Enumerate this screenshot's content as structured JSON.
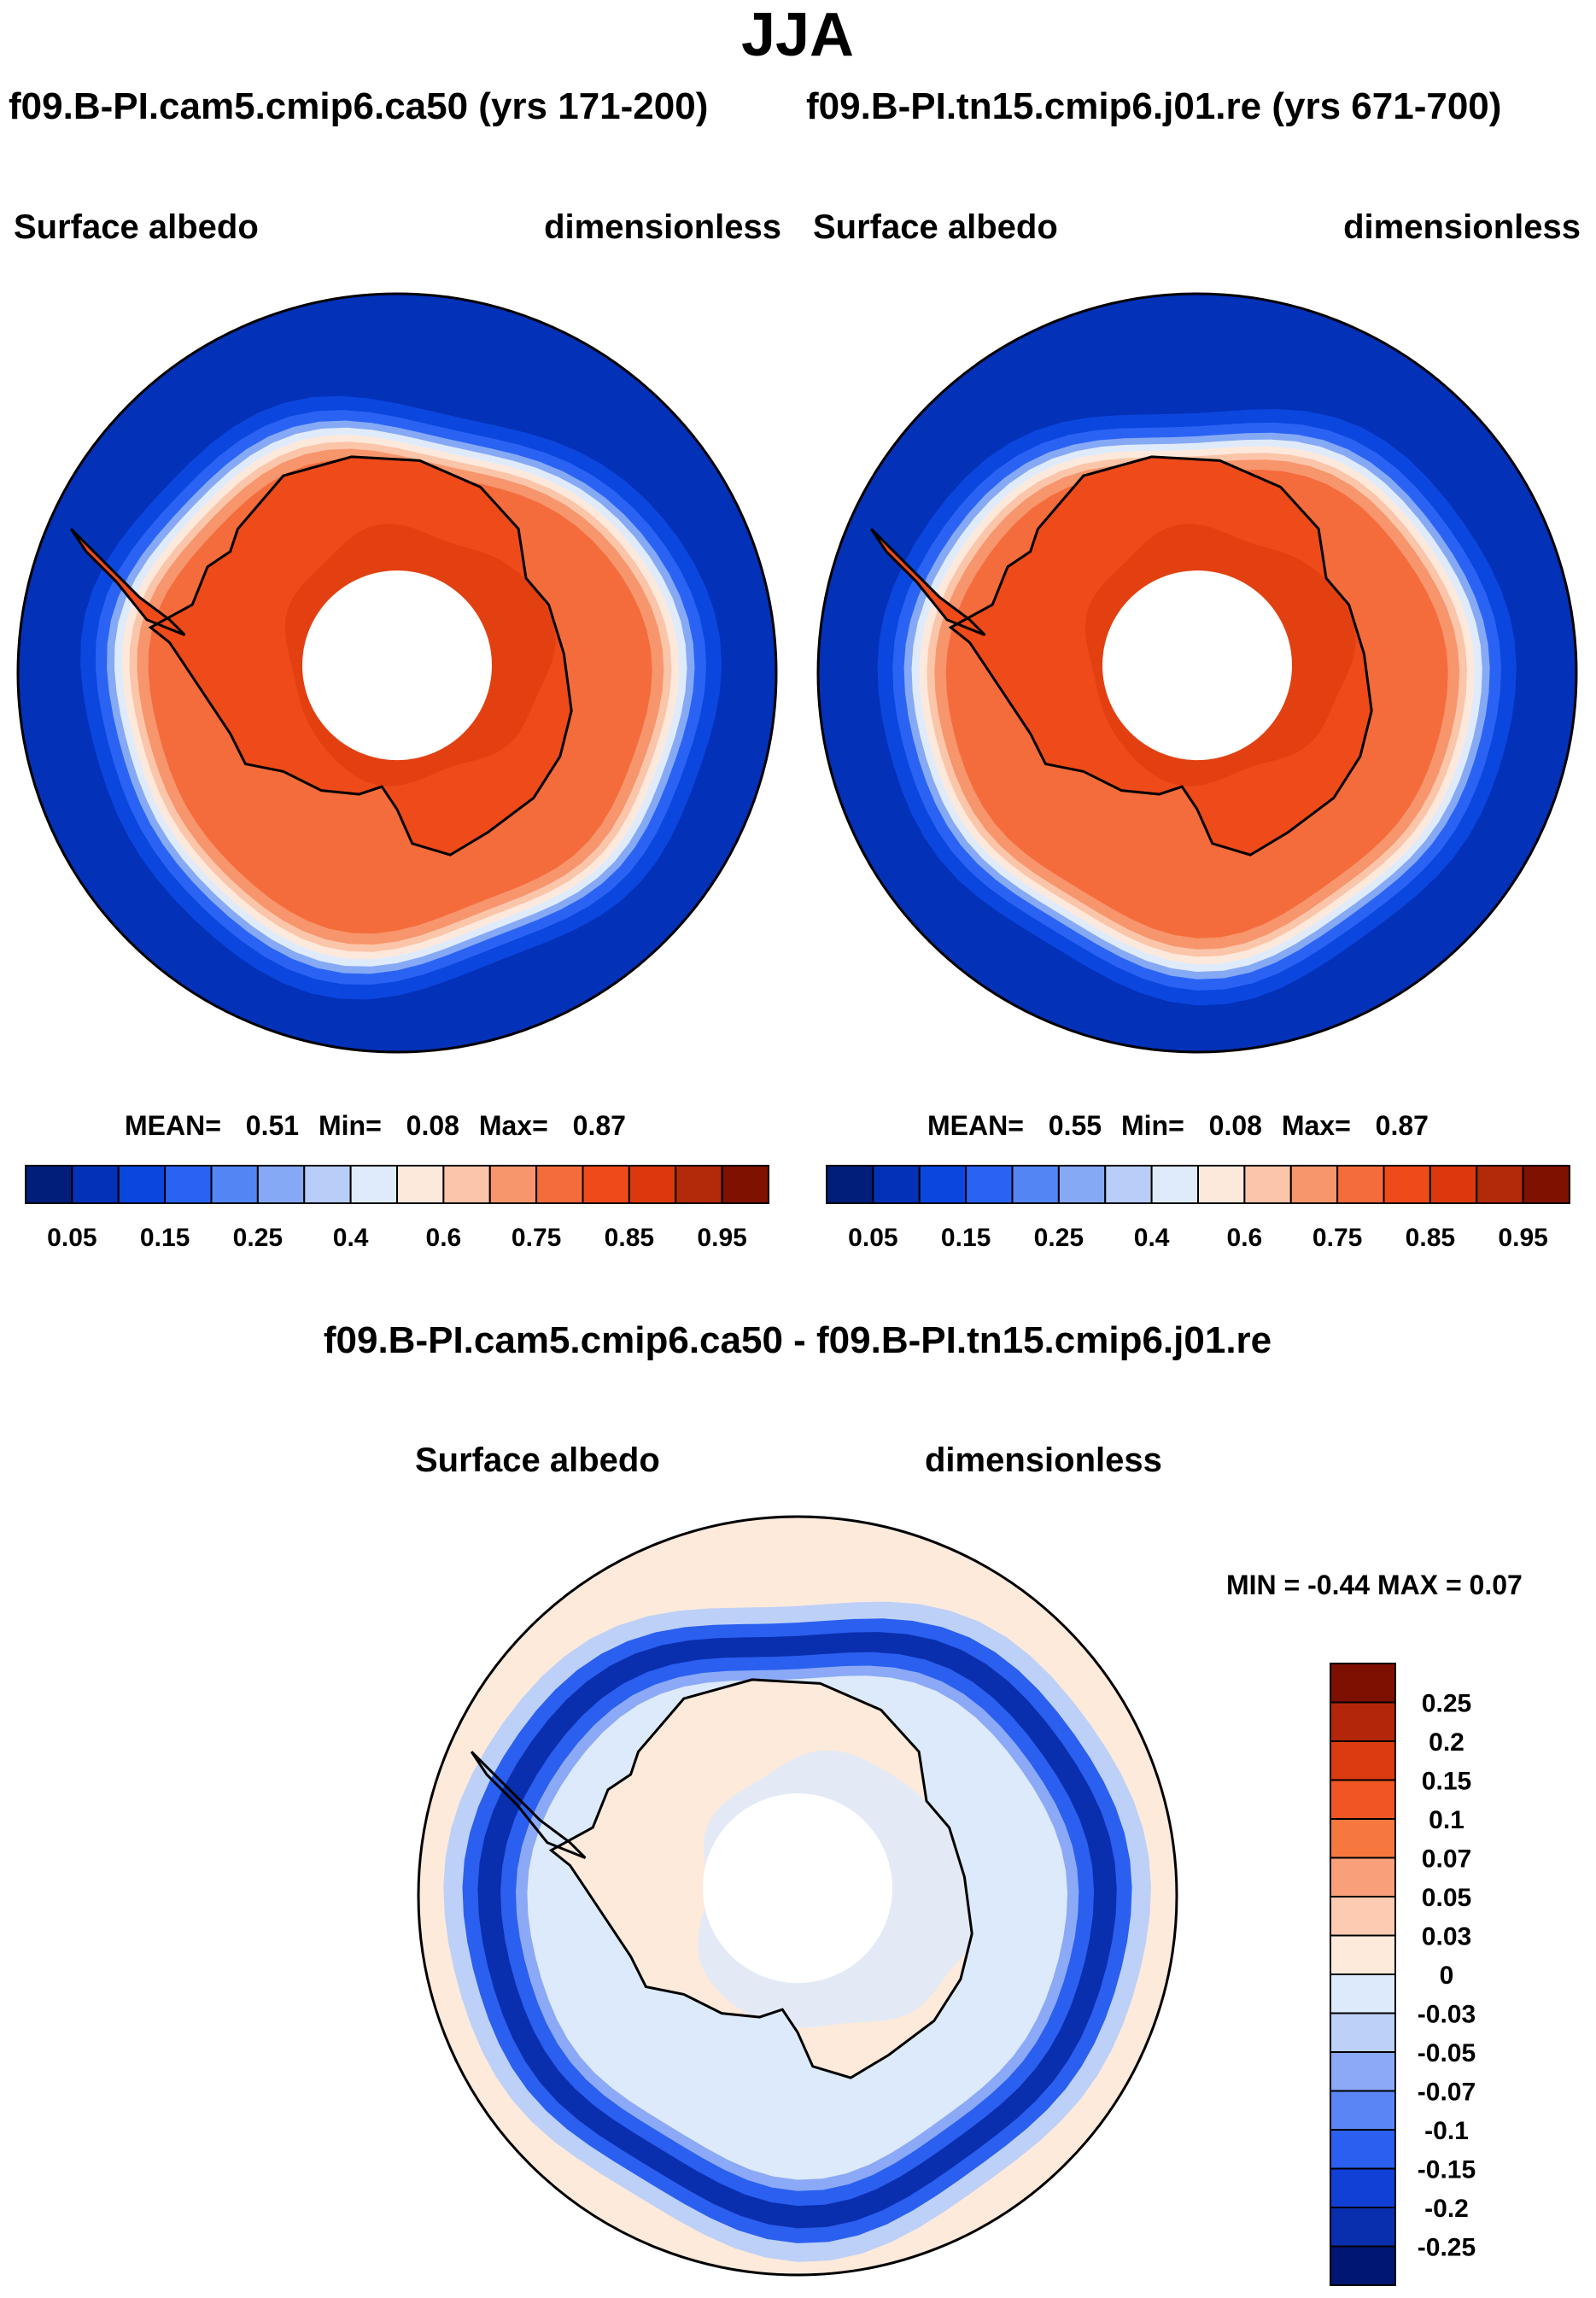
{
  "title": "JJA",
  "panels": [
    {
      "case_title": "f09.B-PI.cam5.cmip6.ca50 (yrs 171-200)",
      "left_label": "Surface albedo",
      "right_label": "dimensionless",
      "stats": {
        "mean_label": "MEAN=",
        "mean": "0.51",
        "min_label": "Min=",
        "min": "0.08",
        "max_label": "Max=",
        "max": "0.87"
      }
    },
    {
      "case_title": "f09.B-PI.tn15.cmip6.j01.re (yrs 671-700)",
      "left_label": "Surface albedo",
      "right_label": "dimensionless",
      "stats": {
        "mean_label": "MEAN=",
        "mean": "0.55",
        "min_label": "Min=",
        "min": "0.08",
        "max_label": "Max=",
        "max": "0.87"
      }
    }
  ],
  "diff": {
    "title": "f09.B-PI.cam5.cmip6.ca50 - f09.B-PI.tn15.cmip6.j01.re",
    "left_label": "Surface albedo",
    "right_label": "dimensionless",
    "minmax": "MIN =  -0.44 MAX =   0.07"
  },
  "colors": {
    "field_palette": [
      "#001e7a",
      "#0331b8",
      "#0b46de",
      "#2a63f4",
      "#5385f5",
      "#86a9f6",
      "#b8cdf7",
      "#dfebfb",
      "#fde9dc",
      "#fbc5a9",
      "#f7956c",
      "#f56c3c",
      "#ee4a1a",
      "#db380d",
      "#b32a0a",
      "#7f1100"
    ],
    "diff_palette": [
      "#001673",
      "#0a2fae",
      "#1140d6",
      "#2a5ff0",
      "#5a86f5",
      "#8ba9f6",
      "#bdd0f7",
      "#dceafb",
      "#fdeadb",
      "#fccbb2",
      "#f9a07a",
      "#f6783f",
      "#f05523",
      "#dc3a10",
      "#b4260a",
      "#7e1002"
    ],
    "coastline": "#000000"
  },
  "chart_data": [
    {
      "type": "contour-map",
      "projection": "south polar stereographic",
      "title": "f09.B-PI.cam5.cmip6.ca50 (yrs 171-200)",
      "variable": "Surface albedo",
      "units": "dimensionless",
      "colorbar_levels": [
        0.05,
        0.1,
        0.15,
        0.2,
        0.25,
        0.3,
        0.4,
        0.5,
        0.6,
        0.7,
        0.75,
        0.8,
        0.85,
        0.9,
        0.95
      ],
      "colorbar_tick_labels": [
        "0.05",
        "0.15",
        "0.25",
        "0.4",
        "0.6",
        "0.75",
        "0.85",
        "0.95"
      ],
      "mean": 0.51,
      "min": 0.08,
      "max": 0.87,
      "sea_ice_edge_albedo": 0.5,
      "continent_albedo": 0.85,
      "sea_ice_albedo": 0.78
    },
    {
      "type": "contour-map",
      "projection": "south polar stereographic",
      "title": "f09.B-PI.tn15.cmip6.j01.re (yrs 671-700)",
      "variable": "Surface albedo",
      "units": "dimensionless",
      "colorbar_levels": [
        0.05,
        0.1,
        0.15,
        0.2,
        0.25,
        0.3,
        0.4,
        0.5,
        0.6,
        0.7,
        0.75,
        0.8,
        0.85,
        0.9,
        0.95
      ],
      "colorbar_tick_labels": [
        "0.05",
        "0.15",
        "0.25",
        "0.4",
        "0.6",
        "0.75",
        "0.85",
        "0.95"
      ],
      "mean": 0.55,
      "min": 0.08,
      "max": 0.87,
      "sea_ice_edge_albedo": 0.5,
      "continent_albedo": 0.85,
      "sea_ice_albedo": 0.78
    },
    {
      "type": "contour-map-difference",
      "projection": "south polar stereographic",
      "title": "f09.B-PI.cam5.cmip6.ca50 - f09.B-PI.tn15.cmip6.j01.re",
      "variable": "Surface albedo",
      "units": "dimensionless",
      "colorbar_levels": [
        -0.25,
        -0.2,
        -0.15,
        -0.1,
        -0.07,
        -0.05,
        -0.03,
        0,
        0.03,
        0.05,
        0.07,
        0.1,
        0.15,
        0.2,
        0.25
      ],
      "colorbar_tick_labels": [
        "0.25",
        "0.2",
        "0.15",
        "0.1",
        "0.07",
        "0.05",
        "0.03",
        "0",
        "-0.03",
        "-0.05",
        "-0.07",
        "-0.1",
        "-0.15",
        "-0.2",
        "-0.25"
      ],
      "min": -0.44,
      "max": 0.07,
      "ice_edge_difference": -0.3,
      "open_ocean_difference": 0.01,
      "continent_difference": -0.01
    }
  ]
}
